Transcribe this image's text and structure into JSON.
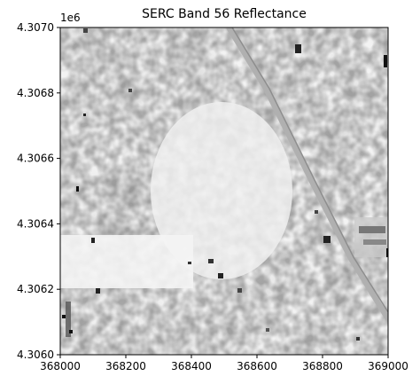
{
  "title": "SERC Band 56 Reflectance",
  "y_offset_label": "1e6",
  "chart_data": {
    "type": "heatmap",
    "title": "SERC Band 56 Reflectance",
    "xlabel": "",
    "ylabel": "",
    "xlim": [
      368000,
      369000
    ],
    "ylim": [
      4306000,
      4307000
    ],
    "x_ticks": [
      {
        "value": 368000,
        "label": "368000"
      },
      {
        "value": 368200,
        "label": "368200"
      },
      {
        "value": 368400,
        "label": "368400"
      },
      {
        "value": 368600,
        "label": "368600"
      },
      {
        "value": 368800,
        "label": "368800"
      },
      {
        "value": 369000,
        "label": "369000"
      }
    ],
    "y_ticks": [
      {
        "value": 4306000,
        "label": "4.3060"
      },
      {
        "value": 4306200,
        "label": "4.3062"
      },
      {
        "value": 4306400,
        "label": "4.3064"
      },
      {
        "value": 4306600,
        "label": "4.3066"
      },
      {
        "value": 4306800,
        "label": "4.3068"
      },
      {
        "value": 4307000,
        "label": "4.3070"
      }
    ],
    "colormap": "grayscale-reversed",
    "grid": false
  }
}
